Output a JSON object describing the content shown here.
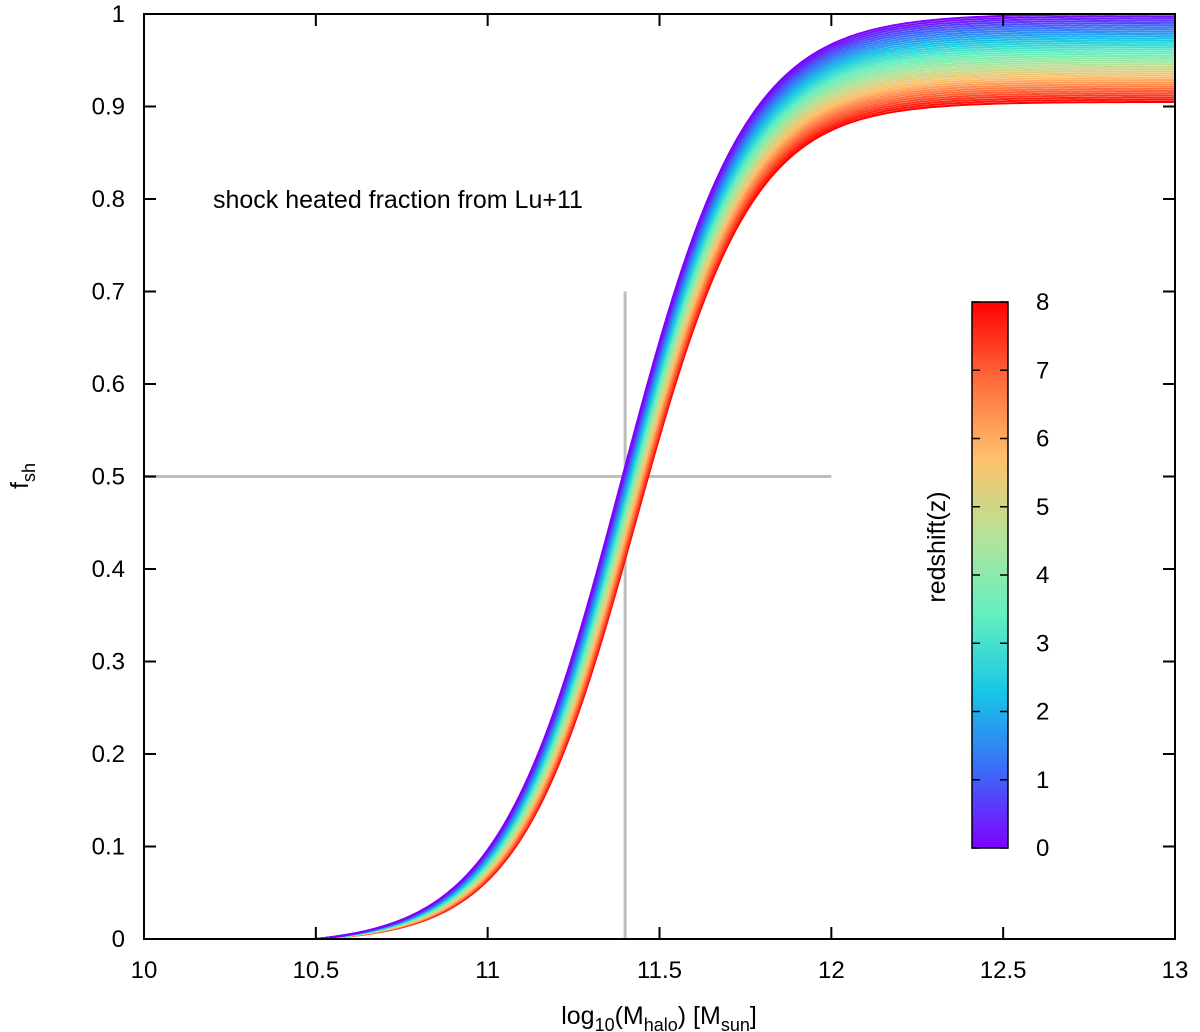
{
  "chart_data": {
    "type": "line",
    "title": "",
    "annotation": "shock heated fraction from Lu+11",
    "xlabel": {
      "base": "log",
      "sub1": "10",
      "mid": "(M",
      "sub2": "halo",
      "after": ") [M",
      "sub3": "sun",
      "end": "]"
    },
    "ylabel": {
      "base": "f",
      "sub": "sh"
    },
    "xlim": [
      10,
      13
    ],
    "ylim": [
      0,
      1
    ],
    "xticks": [
      "10",
      "10.5",
      "11",
      "11.5",
      "12",
      "12.5",
      "13"
    ],
    "xtick_values": [
      10,
      10.5,
      11,
      11.5,
      12,
      12.5,
      13
    ],
    "yticks": [
      "0",
      "0.1",
      "0.2",
      "0.3",
      "0.4",
      "0.5",
      "0.6",
      "0.7",
      "0.8",
      "0.9",
      "1"
    ],
    "ytick_values": [
      0,
      0.1,
      0.2,
      0.3,
      0.4,
      0.5,
      0.6,
      0.7,
      0.8,
      0.9,
      1
    ],
    "series_model": {
      "description": "family of sigmoid curves, one per redshift",
      "redshift_range": [
        0,
        8
      ],
      "n_curves": 41,
      "x_start": 10.5,
      "mid_x_at_z0": 11.39,
      "mid_x_at_z8": 11.43,
      "width_at_z0": 0.18,
      "width_at_z8": 0.17,
      "plateau_at_z0": 1.0,
      "plateau_at_z8": 0.905
    },
    "reference_lines": [
      {
        "name": "vertical-reference",
        "x": [
          11.4,
          11.4
        ],
        "y": [
          0,
          0.7
        ],
        "color": "#bdbdbd"
      },
      {
        "name": "horizontal-reference",
        "x": [
          10,
          12
        ],
        "y": [
          0.5,
          0.5
        ],
        "color": "#bdbdbd"
      }
    ],
    "colorbar": {
      "label": "redshift(z)",
      "range": [
        0,
        8
      ],
      "ticks": [
        "0",
        "1",
        "2",
        "3",
        "4",
        "5",
        "6",
        "7",
        "8"
      ],
      "tick_values": [
        0,
        1,
        2,
        3,
        4,
        5,
        6,
        7,
        8
      ],
      "colormap": [
        "#7f00ff",
        "#3b6cf8",
        "#17c6e7",
        "#63f0c0",
        "#b4e398",
        "#ffc06c",
        "#ff6b3b",
        "#ff0000"
      ]
    }
  }
}
